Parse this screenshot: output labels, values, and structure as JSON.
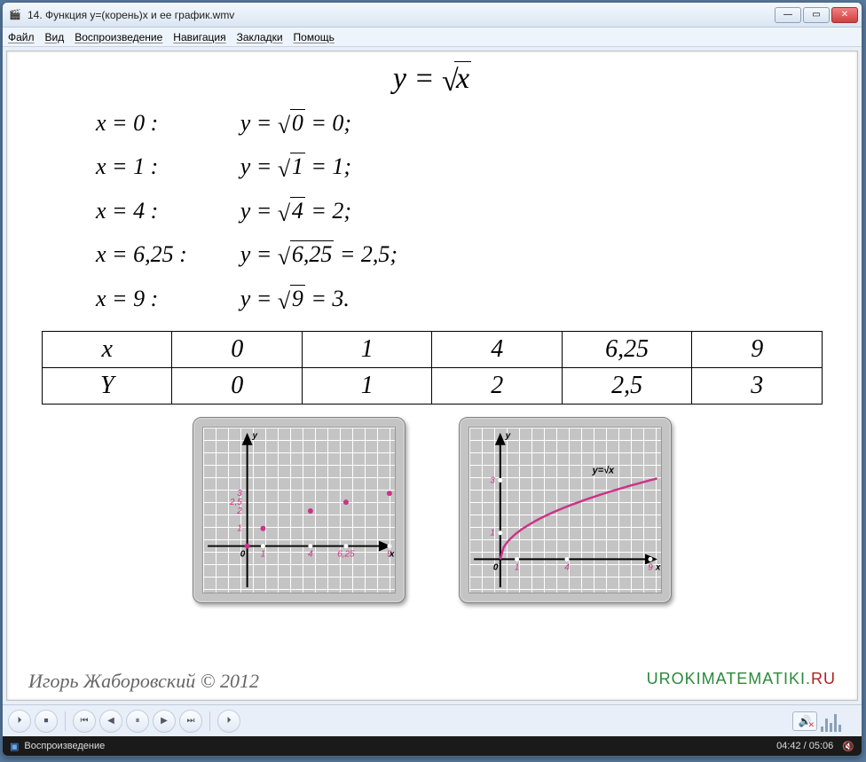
{
  "window": {
    "title": "14. Функция y=(корень)х и ее график.wmv"
  },
  "menu": [
    "Файл",
    "Вид",
    "Воспроизведение",
    "Навигация",
    "Закладки",
    "Помощь"
  ],
  "math": {
    "main_equation_lhs": "y",
    "main_equation_rhs": "x",
    "x_values": [
      "x = 0 :",
      "x = 1 :",
      "x = 4 :",
      "x = 6,25 :",
      "x = 9 :"
    ],
    "y_evals": [
      {
        "arg": "0",
        "res": "0",
        "term": ";"
      },
      {
        "arg": "1",
        "res": "1",
        "term": ";"
      },
      {
        "arg": "4",
        "res": "2",
        "term": ";"
      },
      {
        "arg": "6,25",
        "res": "2,5",
        "term": ";"
      },
      {
        "arg": "9",
        "res": "3",
        "term": "."
      }
    ]
  },
  "table": {
    "headers": [
      "x",
      "0",
      "1",
      "4",
      "6,25",
      "9"
    ],
    "values": [
      "Y",
      "0",
      "1",
      "2",
      "2,5",
      "3"
    ]
  },
  "charts": {
    "scatter": {
      "type": "scatter",
      "origin": {
        "x": 50,
        "y": 135
      },
      "scale_x": 18,
      "scale_y": 20,
      "x_max": 10,
      "y_max": 5,
      "bg_grid": "#ffffff",
      "axis_color": "#000000",
      "point_color": "#cc3388",
      "tick_color": "#ffffff",
      "label_font": 10,
      "label_color_x": "#cc3388",
      "label_color_y": "#cc3388",
      "points": [
        {
          "x": 0,
          "y": 0
        },
        {
          "x": 1,
          "y": 1
        },
        {
          "x": 4,
          "y": 2
        },
        {
          "x": 6.25,
          "y": 2.5
        },
        {
          "x": 9,
          "y": 3
        }
      ],
      "x_ticks": [
        {
          "v": 1,
          "l": "1"
        },
        {
          "v": 4,
          "l": "4"
        },
        {
          "v": 6.25,
          "l": "6,25"
        },
        {
          "v": 9,
          "l": "9"
        }
      ],
      "y_ticks": [
        {
          "v": 1,
          "l": "1"
        },
        {
          "v": 2,
          "l": "2"
        },
        {
          "v": 2.5,
          "l": "2,5"
        },
        {
          "v": 3,
          "l": "3"
        }
      ],
      "axis_labels": {
        "x": "x",
        "y": "y",
        "o": "0"
      }
    },
    "curve": {
      "type": "line",
      "origin": {
        "x": 35,
        "y": 150
      },
      "scale_x": 19,
      "scale_y": 30,
      "x_max": 10,
      "y_max": 4,
      "curve_color": "#cc3388",
      "curve_width": 2.5,
      "label": "y=√x",
      "label_pos": {
        "x": 140,
        "y": 52
      },
      "x_ticks": [
        {
          "v": 1,
          "l": "1"
        },
        {
          "v": 4,
          "l": "4"
        },
        {
          "v": 9,
          "l": "9"
        }
      ],
      "y_ticks": [
        {
          "v": 1,
          "l": "1"
        },
        {
          "v": 3,
          "l": "3"
        }
      ],
      "axis_labels": {
        "x": "x",
        "y": "y",
        "o": "0"
      }
    }
  },
  "footer": {
    "author": "Игорь Жаборовский © 2012",
    "site_main": "UROKIMATEMATIKI",
    "site_dot": ".",
    "site_tld": "RU"
  },
  "toolbar_icons": [
    "⏵",
    "⏹",
    "⏮",
    "◀",
    "⏸",
    "▶",
    "⏭",
    "⏵"
  ],
  "status": {
    "label": "Воспроизведение",
    "time": "04:42 / 05:06"
  }
}
